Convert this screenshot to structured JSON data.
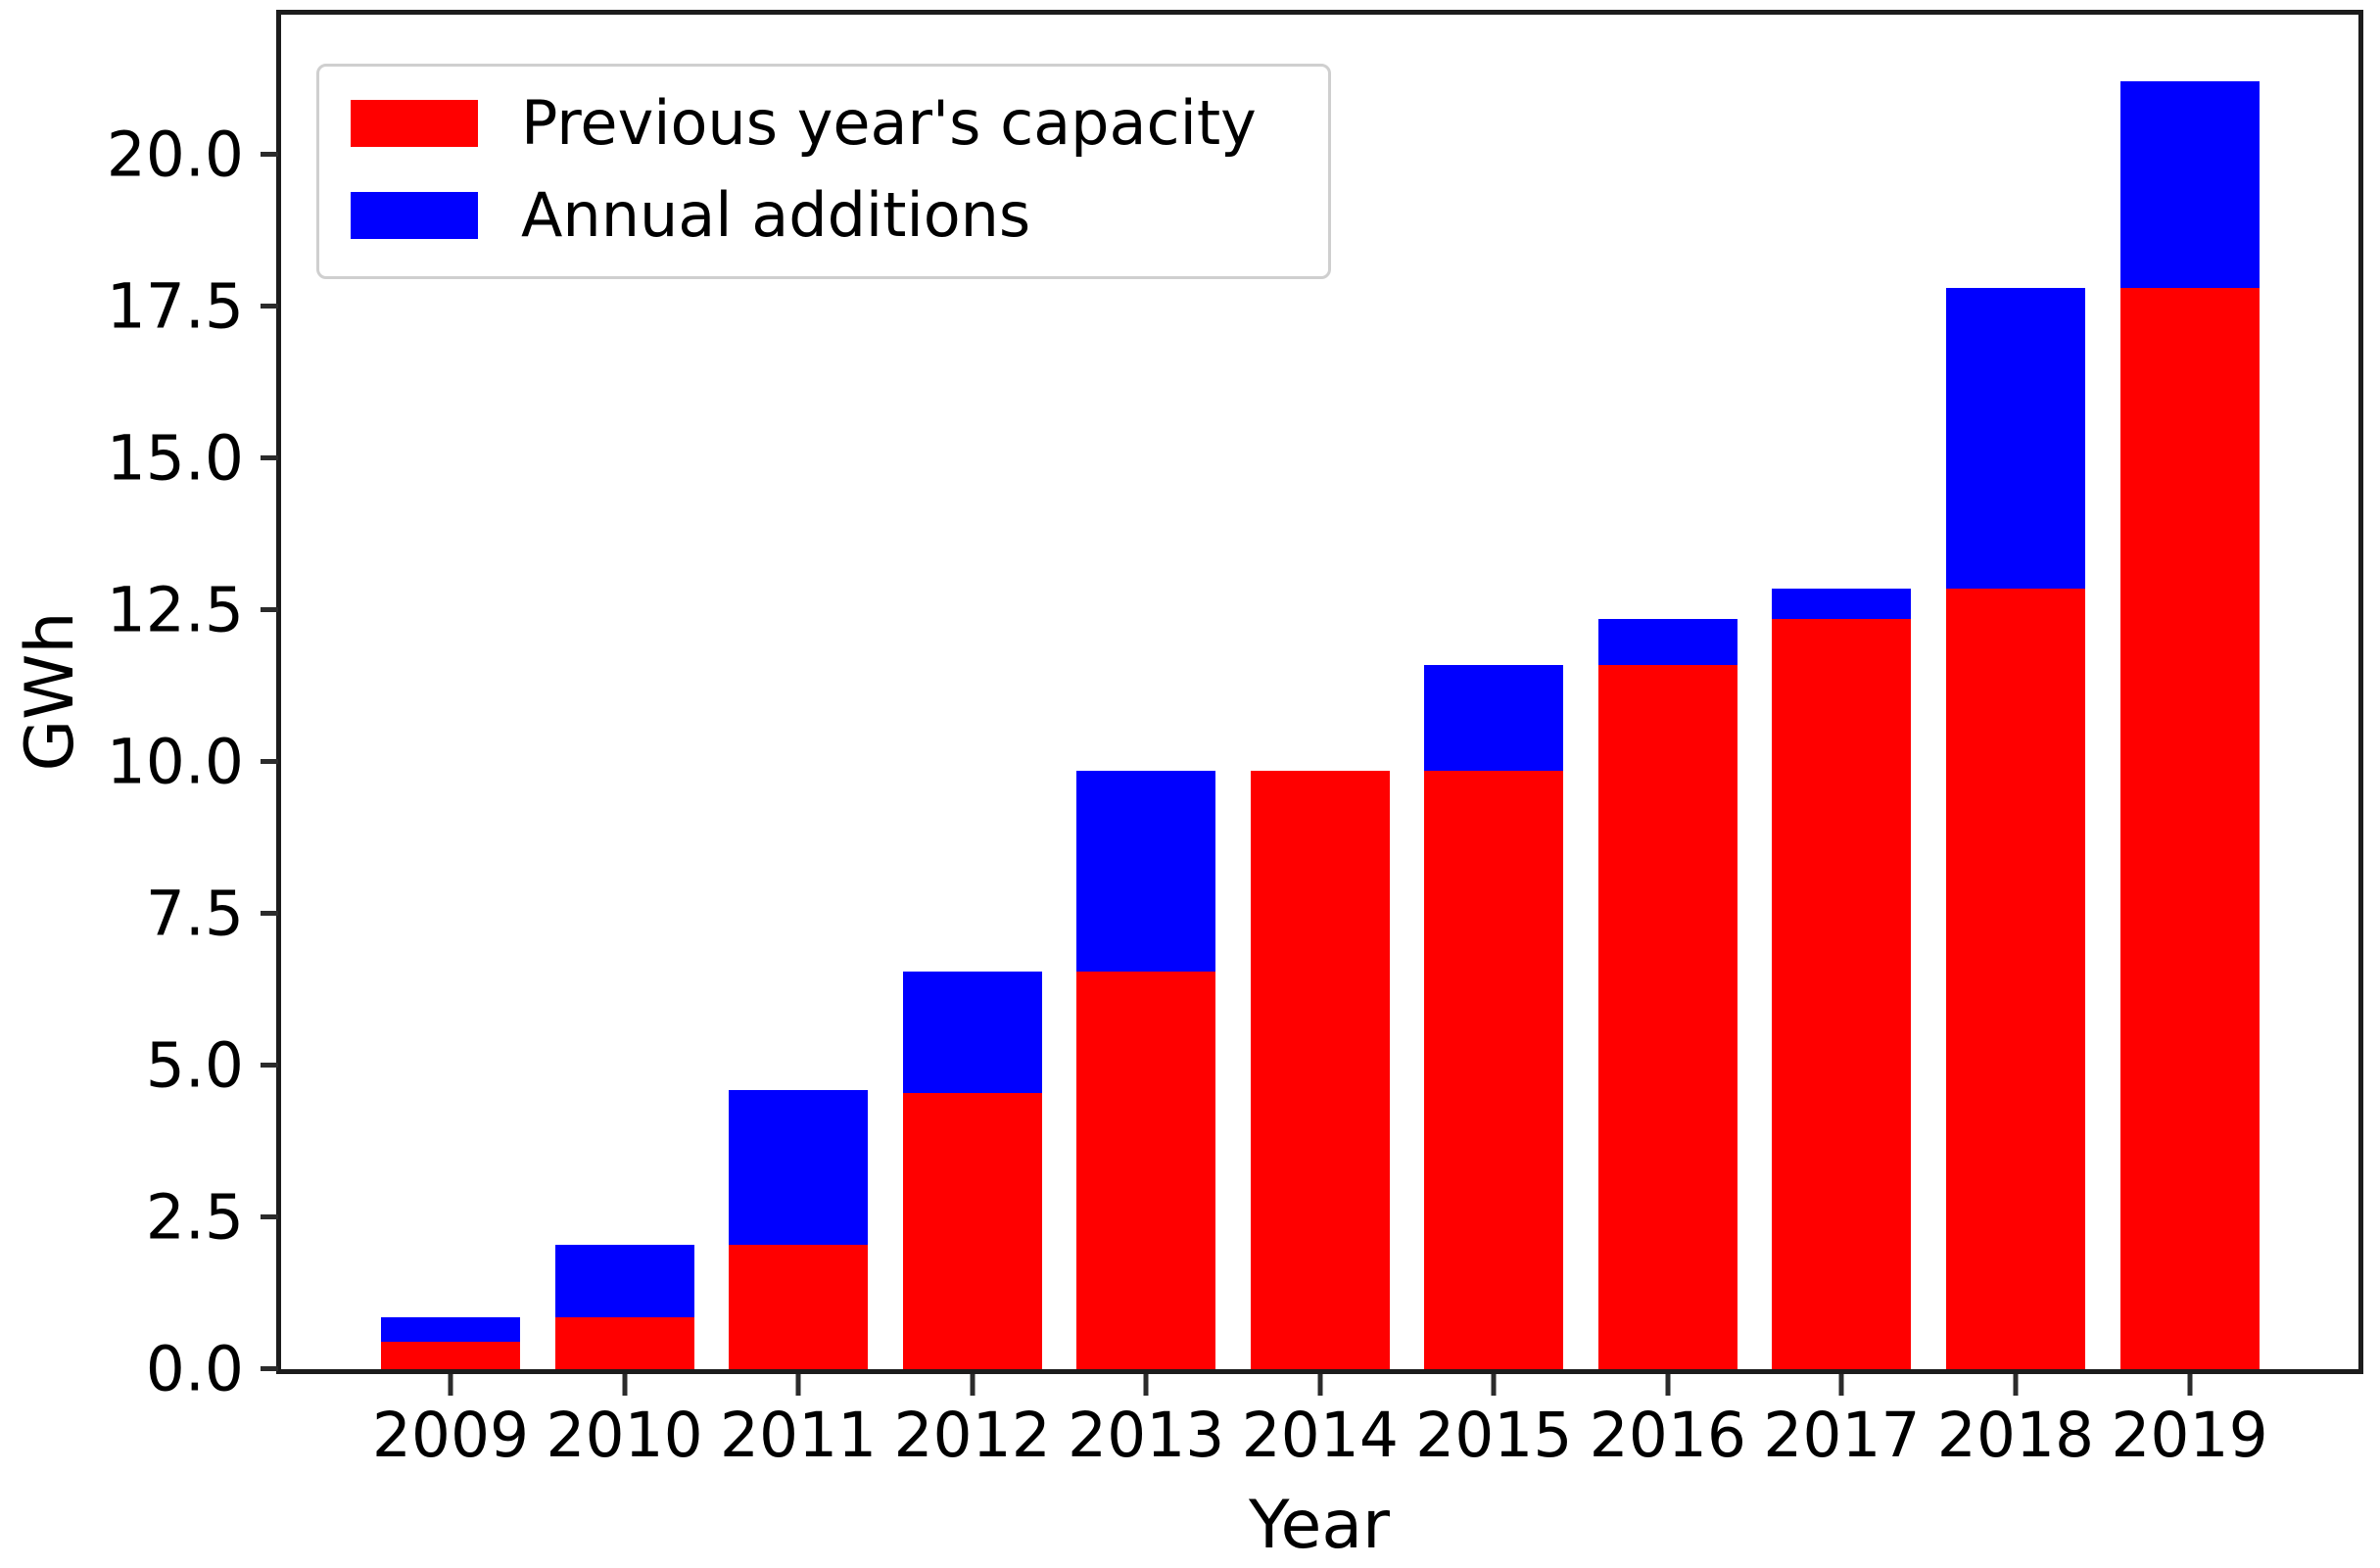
{
  "chart_data": {
    "type": "bar",
    "stacked": true,
    "title": "",
    "xlabel": "Year",
    "ylabel": "GWh",
    "categories": [
      "2009",
      "2010",
      "2011",
      "2012",
      "2013",
      "2014",
      "2015",
      "2016",
      "2017",
      "2018",
      "2019"
    ],
    "series": [
      {
        "name": "Previous year's capacity",
        "color": "#ff0000",
        "values": [
          0.45,
          0.85,
          2.05,
          4.55,
          6.55,
          9.85,
          9.85,
          11.6,
          12.35,
          12.85,
          17.8
        ]
      },
      {
        "name": "Annual additions",
        "color": "#0000ff",
        "values": [
          0.4,
          1.2,
          2.55,
          2.0,
          3.3,
          0.0,
          1.75,
          0.75,
          0.5,
          4.95,
          3.4
        ]
      }
    ],
    "stack_totals": [
      0.85,
      2.05,
      4.6,
      6.55,
      9.85,
      9.85,
      11.6,
      12.35,
      12.85,
      17.8,
      21.2
    ],
    "ylim": [
      0,
      22.3
    ],
    "yticks": [
      0.0,
      2.5,
      5.0,
      7.5,
      10.0,
      12.5,
      15.0,
      17.5,
      20.0
    ],
    "ytick_labels": [
      "0.0",
      "2.5",
      "5.0",
      "7.5",
      "10.0",
      "12.5",
      "15.0",
      "17.5",
      "20.0"
    ],
    "legend_position": "upper left",
    "grid": false
  },
  "colors": {
    "bar_red": "#ff0000",
    "bar_blue": "#0000ff",
    "axis": "#1c1c1c",
    "text": "#000000",
    "legend_border": "#cfcfcf",
    "background": "#ffffff"
  }
}
